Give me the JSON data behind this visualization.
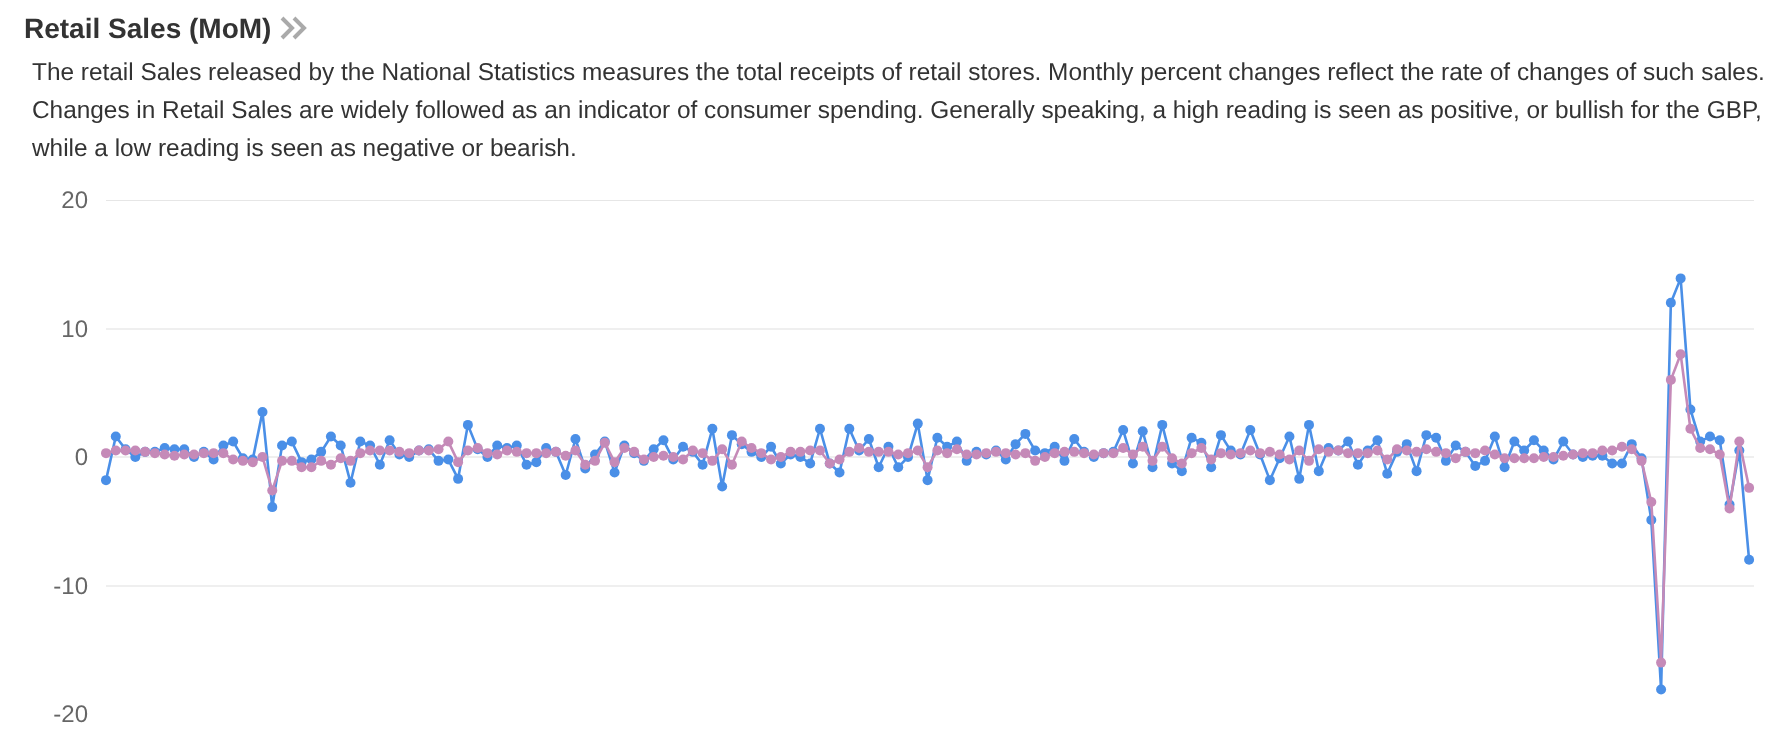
{
  "chart_data": {
    "type": "line",
    "title": "Retail Sales (MoM)",
    "subtitle": "The retail Sales released by the National Statistics measures the total receipts of retail stores. Monthly percent changes reflect the rate of changes of such sales. Changes in Retail Sales are widely followed as an indicator of consumer spending. Generally speaking, a high reading is seen as positive, or bullish for the GBP, while a low reading is seen as negative or bearish.",
    "categories": [
      null,
      null,
      null,
      null,
      null,
      null,
      null,
      null,
      null,
      null,
      null,
      null,
      null,
      null,
      null,
      null,
      null,
      null,
      null,
      null,
      null,
      null,
      null,
      null,
      null,
      null,
      null,
      null,
      null,
      null,
      null,
      null,
      null,
      null,
      null,
      null,
      null,
      null,
      null,
      null,
      null,
      null,
      null,
      null,
      null,
      null,
      null,
      null,
      null,
      null,
      null,
      null,
      null,
      null,
      null,
      null,
      null,
      null,
      null,
      null,
      null,
      null,
      null,
      null,
      null,
      null,
      null,
      null,
      null,
      null,
      null,
      null,
      null,
      null,
      null,
      null,
      null,
      null,
      null,
      null,
      null,
      null,
      null,
      null,
      null,
      null,
      null,
      null,
      null,
      null,
      null,
      null,
      null,
      null,
      null,
      null,
      null,
      null,
      null,
      null,
      null,
      null,
      null,
      null,
      null,
      null,
      null,
      null,
      null,
      null,
      null,
      null,
      null,
      null,
      null,
      null,
      null,
      null,
      null,
      null,
      null,
      null,
      null,
      null,
      null,
      null,
      null,
      null,
      null,
      null,
      null,
      null,
      null,
      null,
      null,
      null,
      null,
      null,
      null,
      null,
      null,
      null,
      null,
      null,
      null,
      null,
      null,
      null,
      null,
      null,
      null,
      null,
      null,
      null,
      null,
      null,
      null,
      null,
      null,
      null,
      null,
      null,
      null,
      null,
      null,
      null,
      null,
      null,
      null
    ],
    "series": [
      {
        "color": "#4a8fe7",
        "values": [
          -1.8,
          1.6,
          0.6,
          0,
          0.4,
          0.4,
          0.7,
          0.6,
          0.6,
          0,
          0.4,
          -0.2,
          0.9,
          1.2,
          -0.1,
          -0.2,
          3.5,
          -3.9,
          0.9,
          1.2,
          -0.4,
          -0.2,
          0.4,
          1.6,
          0.9,
          -2.0,
          1.2,
          0.9,
          -0.6,
          1.3,
          0.2,
          0,
          0.5,
          0.6,
          -0.3,
          -0.2,
          -1.7,
          2.5,
          0.6,
          0,
          0.9,
          0.7,
          0.9,
          -0.6,
          -0.4,
          0.7,
          0.4,
          -1.4,
          1.4,
          -0.9,
          0.2,
          1.2,
          -1.2,
          0.9,
          0.3,
          -0.3,
          0.6,
          1.3,
          -0.2,
          0.8,
          0.4,
          -0.6,
          2.2,
          -2.3,
          1.7,
          1.0,
          0.4,
          0,
          0.8,
          -0.5,
          0.2,
          0,
          -0.5,
          2.2,
          -0.5,
          -1.2,
          2.2,
          0.5,
          1.4,
          -0.8,
          0.8,
          -0.8,
          0,
          2.6,
          -1.8,
          1.5,
          0.8,
          1.2,
          -0.3,
          0.4,
          0.2,
          0.5,
          -0.2,
          1.0,
          1.8,
          0.5,
          0.3,
          0.8,
          -0.3,
          1.4,
          0.4,
          0,
          0.3,
          0.4,
          2.1,
          -0.5,
          2.0,
          -0.8,
          2.5,
          -0.5,
          -1.1,
          1.5,
          1.1,
          -0.8,
          1.7,
          0.5,
          0.2,
          2.1,
          0.2,
          -1.8,
          -0.1,
          1.6,
          -1.7,
          2.5,
          -1.1,
          0.7,
          0.5,
          1.2,
          -0.6,
          0.5,
          1.3,
          -1.3,
          0.4,
          1.0,
          -1.1,
          1.7,
          1.5,
          -0.3,
          0.9,
          0.4,
          -0.7,
          -0.3,
          1.6,
          -0.8,
          1.2,
          0.5,
          1.3,
          0.5,
          -0.2,
          1.2,
          0.2,
          0,
          0.1,
          0.1,
          -0.5,
          -0.5,
          1.0,
          -0.1,
          -4.9,
          -18.1,
          12,
          13.9,
          3.7,
          1.2,
          1.6,
          1.3,
          -3.7,
          0.5,
          -8.0
        ]
      },
      {
        "color": "#c58ab8",
        "values": [
          0.3,
          0.5,
          0.5,
          0.5,
          0.4,
          0.3,
          0.2,
          0.1,
          0.2,
          0.2,
          0.3,
          0.3,
          0.3,
          -0.2,
          -0.3,
          -0.4,
          0,
          -2.6,
          -0.3,
          -0.3,
          -0.8,
          -0.8,
          -0.3,
          -0.6,
          -0.1,
          -0.3,
          0.3,
          0.5,
          0.5,
          0.5,
          0.4,
          0.3,
          0.5,
          0.5,
          0.6,
          1.2,
          -0.4,
          0.5,
          0.7,
          0.3,
          0.2,
          0.5,
          0.4,
          0.3,
          0.3,
          0.3,
          0.4,
          0.1,
          0.5,
          -0.6,
          -0.3,
          1.1,
          -0.4,
          0.7,
          0.4,
          -0.2,
          0,
          0.1,
          0,
          -0.2,
          0.5,
          0.3,
          -0.3,
          0.6,
          -0.6,
          1.2,
          0.7,
          0.3,
          -0.2,
          0,
          0.4,
          0.4,
          0.5,
          0.5,
          -0.5,
          -0.2,
          0.4,
          0.7,
          0.4,
          0.4,
          0.4,
          0.2,
          0.3,
          0.5,
          -0.8,
          0.5,
          0.3,
          0.6,
          0.2,
          0.2,
          0.3,
          0.4,
          0.3,
          0.2,
          0.3,
          -0.3,
          0,
          0.3,
          0.4,
          0.4,
          0.3,
          0.2,
          0.3,
          0.3,
          0.7,
          0.2,
          0.8,
          -0.3,
          0.8,
          -0.1,
          -0.5,
          0.3,
          0.7,
          -0.2,
          0.3,
          0.2,
          0.3,
          0.5,
          0.3,
          0.4,
          0.2,
          -0.2,
          0.5,
          -0.3,
          0.6,
          0.4,
          0.5,
          0.3,
          0.3,
          0.3,
          0.5,
          -0.2,
          0.6,
          0.5,
          0.4,
          0.6,
          0.4,
          0.3,
          -0.1,
          0.4,
          0.3,
          0.5,
          0.2,
          -0.1,
          -0.1,
          -0.1,
          -0.1,
          0,
          0,
          0.1,
          0.2,
          0.3,
          0.3,
          0.5,
          0.5,
          0.8,
          0.6,
          -0.3,
          -3.5,
          -16,
          6,
          8,
          2.2,
          0.7,
          0.6,
          0.2,
          -4,
          1.2,
          -2.4
        ]
      }
    ],
    "ylim": [
      -20,
      20
    ],
    "yticks": [
      -20,
      -10,
      0,
      10,
      20
    ],
    "tick_labels": "y",
    "grid": "y",
    "marker": "circle",
    "line_style": "solid"
  }
}
